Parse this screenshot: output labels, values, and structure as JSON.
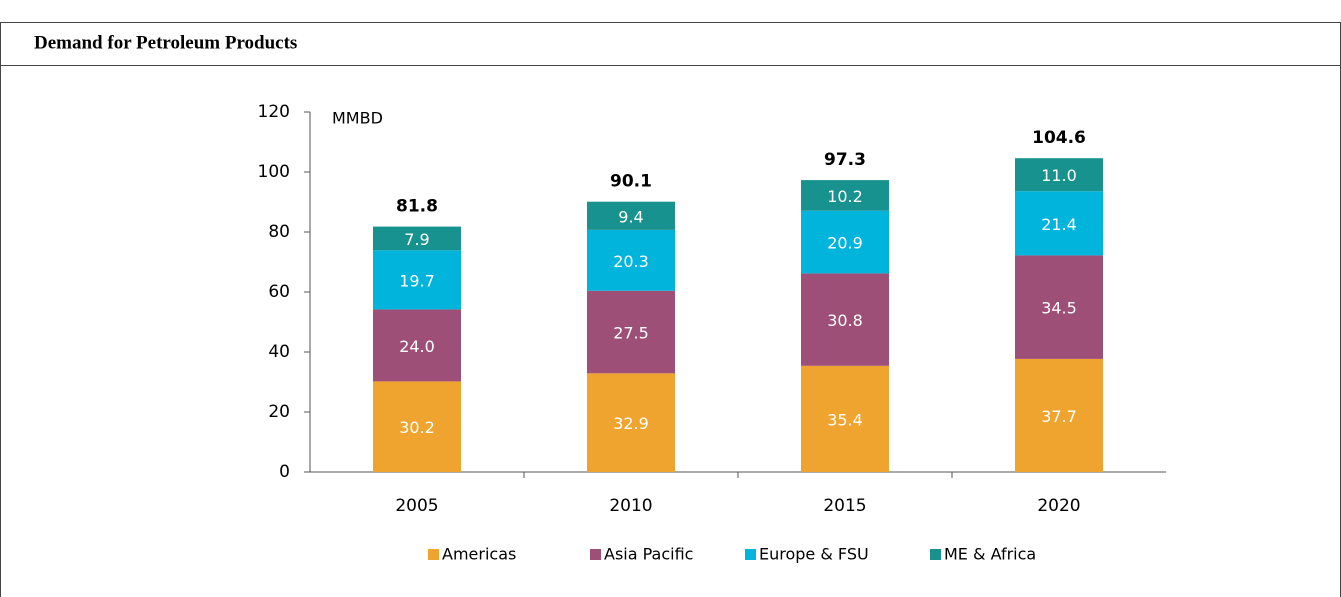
{
  "header": {
    "title": "Demand for Petroleum Products"
  },
  "chart_data": {
    "type": "stacked_bar",
    "y_label": "MMBD",
    "categories": [
      "2005",
      "2010",
      "2015",
      "2020"
    ],
    "series": [
      {
        "name": "Americas",
        "color": "#f0a430",
        "values": [
          30.2,
          32.9,
          35.4,
          37.7
        ],
        "value_labels": [
          "30.2",
          "32.9",
          "35.4",
          "37.7"
        ]
      },
      {
        "name": "Asia Pacific",
        "color": "#9e4f77",
        "values": [
          24.0,
          27.5,
          30.8,
          34.5
        ],
        "value_labels": [
          "24.0",
          "27.5",
          "30.8",
          "34.5"
        ]
      },
      {
        "name": "Europe & FSU",
        "color": "#00b4dc",
        "values": [
          19.7,
          20.3,
          20.9,
          21.4
        ],
        "value_labels": [
          "19.7",
          "20.3",
          "20.9",
          "21.4"
        ]
      },
      {
        "name": "ME & Africa",
        "color": "#17928f",
        "values": [
          7.9,
          9.4,
          10.2,
          11.0
        ],
        "value_labels": [
          "7.9",
          "9.4",
          "10.2",
          "11.0"
        ]
      }
    ],
    "totals": [
      81.8,
      90.1,
      97.3,
      104.6
    ],
    "ylim": [
      0,
      120
    ],
    "yticks": [
      0,
      20,
      40,
      60,
      80,
      100,
      120
    ],
    "legend": "bottom"
  }
}
